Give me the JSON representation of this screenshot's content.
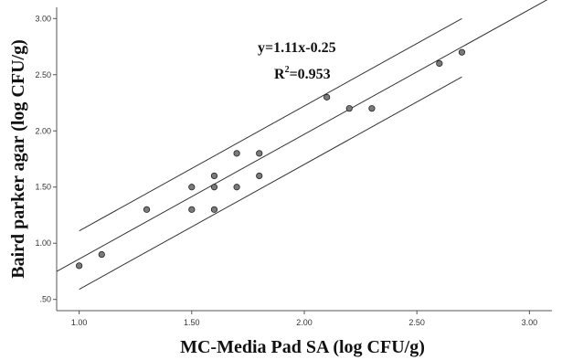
{
  "chart_data": {
    "type": "scatter",
    "title": "",
    "xlabel": "MC-Media Pad SA (log CFU/g)",
    "ylabel": "Baird parker agar (log CFU/g)",
    "xlim": [
      0.9,
      3.1
    ],
    "ylim": [
      0.4,
      3.1
    ],
    "x_ticks": [
      "1.00",
      "1.50",
      "2.00",
      "2.50",
      "3.00"
    ],
    "y_ticks": [
      ".50",
      "1.00",
      "1.50",
      "2.00",
      "2.50",
      "3.00"
    ],
    "points": [
      {
        "x": 1.0,
        "y": 0.8
      },
      {
        "x": 1.1,
        "y": 0.9
      },
      {
        "x": 1.3,
        "y": 1.3
      },
      {
        "x": 1.5,
        "y": 1.5
      },
      {
        "x": 1.5,
        "y": 1.3
      },
      {
        "x": 1.6,
        "y": 1.6
      },
      {
        "x": 1.6,
        "y": 1.5
      },
      {
        "x": 1.6,
        "y": 1.3
      },
      {
        "x": 1.7,
        "y": 1.8
      },
      {
        "x": 1.7,
        "y": 1.5
      },
      {
        "x": 1.8,
        "y": 1.8
      },
      {
        "x": 1.8,
        "y": 1.6
      },
      {
        "x": 2.1,
        "y": 2.3
      },
      {
        "x": 2.2,
        "y": 2.2
      },
      {
        "x": 2.3,
        "y": 2.2
      },
      {
        "x": 2.6,
        "y": 2.6
      },
      {
        "x": 2.7,
        "y": 2.7
      }
    ],
    "fit_lines": [
      {
        "x": [
          0.9,
          3.1
        ],
        "y": [
          0.749,
          3.191
        ]
      },
      {
        "x": [
          1.0,
          2.7
        ],
        "y": [
          1.11,
          3.0
        ]
      },
      {
        "x": [
          1.0,
          2.7
        ],
        "y": [
          0.59,
          2.48
        ]
      }
    ],
    "annotations": {
      "equation": "y=1.11x-0.25",
      "r2_prefix": "R",
      "r2_sup": "2",
      "r2_value": "=0.953"
    },
    "grid": false,
    "colors": {
      "point_fill": "#7a7a7a",
      "point_stroke": "#222222",
      "line": "#333333",
      "axis": "#555555"
    }
  }
}
